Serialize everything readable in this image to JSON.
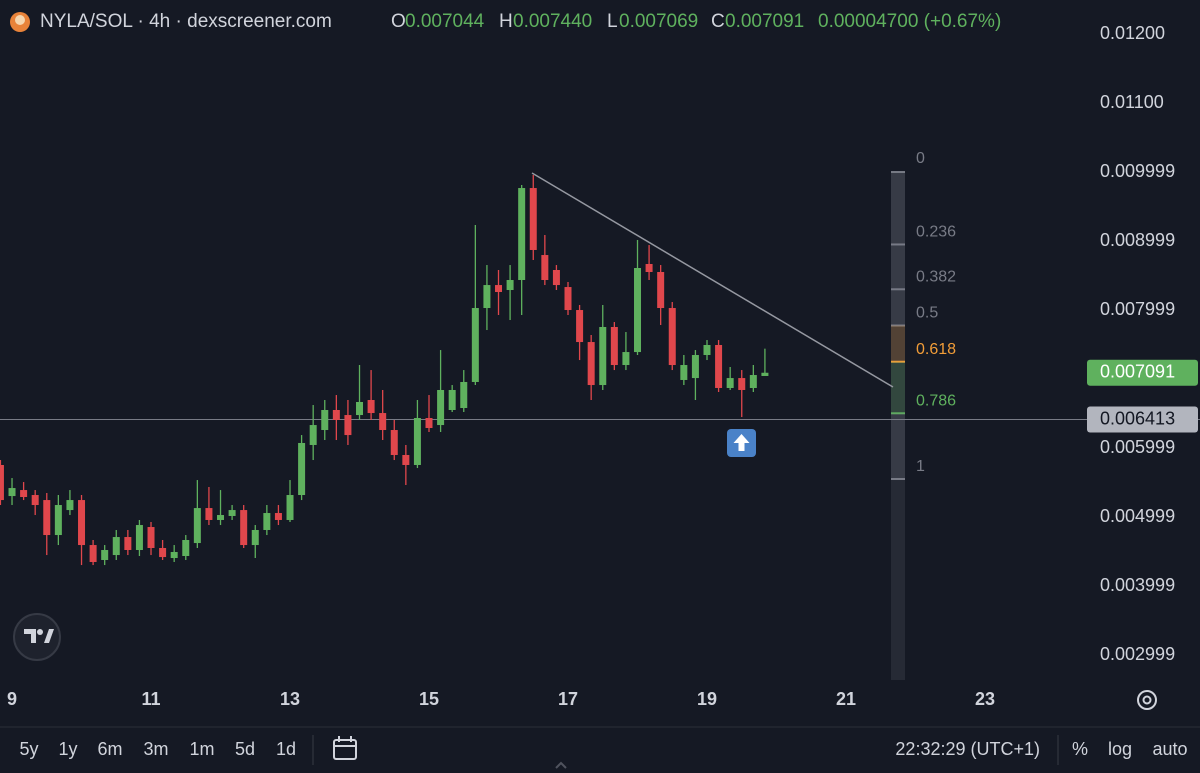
{
  "header": {
    "symbol": "NYLA/SOL · 4h · dexscreener.com",
    "ohlc": [
      {
        "key": "O",
        "value": "0.007044"
      },
      {
        "key": "H",
        "value": "0.007440"
      },
      {
        "key": "L",
        "value": "0.007069"
      },
      {
        "key": "C",
        "value": "0.007091"
      }
    ],
    "change": "0.00004700 (+0.67%)"
  },
  "chart_data": {
    "type": "candlestick",
    "x": [
      8.8333,
      9,
      9.1667,
      9.3333,
      9.5,
      9.6667,
      9.8333,
      10,
      10.1667,
      10.3333,
      10.5,
      10.6667,
      10.8333,
      11,
      11.1667,
      11.3333,
      11.5,
      11.6667,
      11.8333,
      12,
      12.1667,
      12.3333,
      12.5,
      12.6667,
      12.8333,
      13,
      13.1667,
      13.3333,
      13.5,
      13.6667,
      13.8333,
      14,
      14.1667,
      14.3333,
      14.5,
      14.6667,
      14.8333,
      15,
      15.1667,
      15.3333,
      15.5,
      15.6667,
      15.8333,
      16,
      16.1667,
      16.3333,
      16.5,
      16.6667,
      16.8333,
      17,
      17.1667,
      17.3333,
      17.5,
      17.6667,
      17.8333,
      18,
      18.1667,
      18.3333,
      18.5,
      18.6667,
      18.8333,
      19,
      19.1667,
      19.3333,
      19.5,
      19.6667,
      19.8333
    ],
    "open": [
      0.005754,
      0.005304,
      0.005391,
      0.005319,
      0.005246,
      0.004739,
      0.005101,
      0.005246,
      0.004594,
      0.004377,
      0.004449,
      0.00471,
      0.004522,
      0.004855,
      0.004551,
      0.004406,
      0.004435,
      0.004623,
      0.00513,
      0.004957,
      0.005015,
      0.005101,
      0.004594,
      0.004812,
      0.005058,
      0.004957,
      0.005319,
      0.006044,
      0.006261,
      0.006551,
      0.006478,
      0.006478,
      0.006696,
      0.006507,
      0.006261,
      0.005899,
      0.005754,
      0.006435,
      0.006333,
      0.006551,
      0.00658,
      0.006957,
      0.008029,
      0.008362,
      0.00829,
      0.008435,
      0.009768,
      0.008797,
      0.00858,
      0.008333,
      0.008,
      0.007536,
      0.006913,
      0.007754,
      0.007203,
      0.007391,
      0.008667,
      0.008551,
      0.008029,
      0.006986,
      0.007014,
      0.007348,
      0.007493,
      0.00687,
      0.007014,
      0.00687,
      0.007044
    ],
    "high": [
      0.005826,
      0.005565,
      0.005507,
      0.005391,
      0.005348,
      0.005319,
      0.005391,
      0.005319,
      0.004667,
      0.004594,
      0.004812,
      0.004812,
      0.004957,
      0.004928,
      0.004667,
      0.004594,
      0.004739,
      0.005536,
      0.005435,
      0.005391,
      0.005174,
      0.005174,
      0.004884,
      0.005174,
      0.005174,
      0.005536,
      0.006188,
      0.006623,
      0.006696,
      0.006768,
      0.006696,
      0.007203,
      0.00713,
      0.006841,
      0.006406,
      0.006044,
      0.006696,
      0.006768,
      0.00742,
      0.006913,
      0.00713,
      0.009232,
      0.008652,
      0.00858,
      0.008652,
      0.009812,
      0.009957,
      0.009087,
      0.008652,
      0.008406,
      0.008073,
      0.007638,
      0.008073,
      0.007826,
      0.007681,
      0.009015,
      0.008942,
      0.008652,
      0.008116,
      0.007348,
      0.00742,
      0.007565,
      0.007565,
      0.007174,
      0.00713,
      0.007203,
      0.00744
    ],
    "low": [
      0.005174,
      0.005174,
      0.005246,
      0.005029,
      0.004449,
      0.004594,
      0.005029,
      0.004304,
      0.004304,
      0.004304,
      0.004377,
      0.004449,
      0.004435,
      0.004449,
      0.004377,
      0.004348,
      0.004377,
      0.004551,
      0.004884,
      0.004884,
      0.004957,
      0.004551,
      0.004406,
      0.004739,
      0.004884,
      0.004928,
      0.005246,
      0.005826,
      0.006116,
      0.006116,
      0.006044,
      0.006406,
      0.006406,
      0.006116,
      0.005826,
      0.005464,
      0.00571,
      0.006232,
      0.006232,
      0.006522,
      0.006522,
      0.006913,
      0.00771,
      0.007928,
      0.007855,
      0.007928,
      0.008725,
      0.008362,
      0.00829,
      0.007928,
      0.007275,
      0.006696,
      0.006841,
      0.00713,
      0.00713,
      0.007348,
      0.008435,
      0.007783,
      0.00713,
      0.006913,
      0.006696,
      0.007275,
      0.006812,
      0.006841,
      0.006449,
      0.006812,
      0.007069
    ],
    "close": [
      0.005246,
      0.00542,
      0.00529,
      0.005174,
      0.004739,
      0.005174,
      0.005246,
      0.004594,
      0.004348,
      0.004522,
      0.00471,
      0.004522,
      0.004884,
      0.004551,
      0.00442,
      0.004493,
      0.004667,
      0.00513,
      0.004957,
      0.005029,
      0.005101,
      0.004594,
      0.004812,
      0.005058,
      0.004957,
      0.005319,
      0.006073,
      0.006333,
      0.006551,
      0.006406,
      0.006188,
      0.006667,
      0.006507,
      0.006261,
      0.005899,
      0.005754,
      0.006435,
      0.00629,
      0.006841,
      0.006841,
      0.006957,
      0.008029,
      0.008362,
      0.008261,
      0.008435,
      0.009768,
      0.00887,
      0.008435,
      0.008362,
      0.008,
      0.007536,
      0.006913,
      0.007754,
      0.007203,
      0.007391,
      0.008609,
      0.008551,
      0.008029,
      0.007203,
      0.007203,
      0.007348,
      0.007493,
      0.00687,
      0.007014,
      0.006841,
      0.007058,
      0.007091
    ],
    "up_color": "#5fb15e",
    "down_color": "#e0474c",
    "xlim": [
      8.827,
      24.439
    ],
    "xticks": [
      9,
      11,
      13,
      15,
      17,
      19,
      21,
      23
    ],
    "ylim": [
      0.002638,
      0.012493
    ],
    "yticks": [
      {
        "value": 0.012,
        "label": "0.01200"
      },
      {
        "value": 0.011,
        "label": "0.01100"
      },
      0.009999,
      0.008999,
      0.007999,
      0.005999,
      0.004999,
      0.003999,
      0.002999
    ],
    "price_line": 0.006413,
    "trendline": {
      "x": [
        16.482,
        21.676
      ],
      "y": [
        0.009986,
        0.006884
      ],
      "color": "#9598a1"
    },
    "fib": {
      "start": 0.01,
      "end": 0.005551,
      "levels": [
        0,
        0.236,
        0.382,
        0.5,
        0.618,
        0.786,
        1
      ],
      "colors": [
        "#787b86",
        "#787b86",
        "#787b86",
        "#787b86",
        "#f29d38",
        "#5fb15e",
        "#787b86"
      ]
    }
  },
  "toolbar": {
    "ranges": [
      "5y",
      "1y",
      "6m",
      "3m",
      "1m",
      "5d",
      "1d"
    ],
    "time": "22:32:29 (UTC+1)",
    "options": [
      "%",
      "log",
      "auto"
    ]
  }
}
